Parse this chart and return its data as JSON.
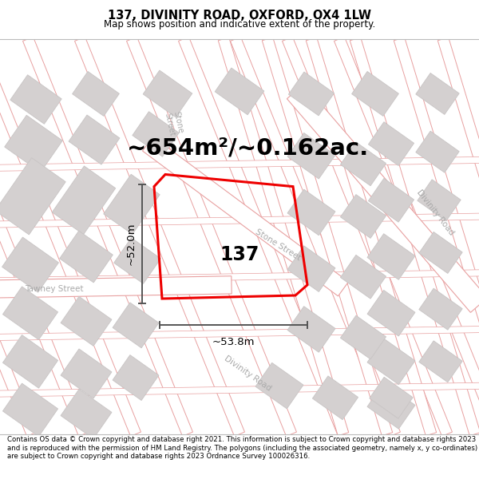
{
  "title": "137, DIVINITY ROAD, OXFORD, OX4 1LW",
  "subtitle": "Map shows position and indicative extent of the property.",
  "area_text": "~654m²/~0.162ac.",
  "dim_width": "~53.8m",
  "dim_height": "~52.0m",
  "label": "137",
  "footer": "Contains OS data © Crown copyright and database right 2021. This information is subject to Crown copyright and database rights 2023 and is reproduced with the permission of HM Land Registry. The polygons (including the associated geometry, namely x, y co-ordinates) are subject to Crown copyright and database rights 2023 Ordnance Survey 100026316.",
  "title_fontsize": 10.5,
  "subtitle_fontsize": 8.5,
  "area_fontsize": 21,
  "label_fontsize": 17,
  "dim_fontsize": 9.5,
  "footer_fontsize": 6.2,
  "road_outline_color": "#e8a0a0",
  "road_fill_color": "#f5e8e8",
  "building_fill": "#d4d0d0",
  "building_edge": "#c8c4c4",
  "street_label_color": "#aaaaaa",
  "highlight_color": "#ee0000",
  "bg_color": "#ffffff",
  "tawney_label_color": "#aaaaaa",
  "dim_color": "#555555"
}
